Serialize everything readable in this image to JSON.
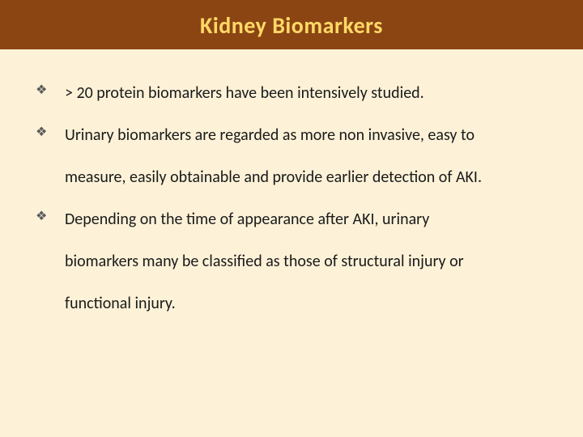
{
  "slide": {
    "title": "Kidney Biomarkers",
    "header_bg_color": "#8b4513",
    "header_text_color": "#ffd966",
    "header_fontsize": 28,
    "body_bg_color": "#fdf2d8",
    "body_text_color": "#1a1a1a",
    "body_fontsize": 20,
    "bullet_color": "#5a5a5a",
    "bullet_glyph": "❖",
    "line_height": 2.6,
    "bullets": [
      {
        "lines": [
          "> 20 protein biomarkers have been intensively studied."
        ]
      },
      {
        "lines": [
          "Urinary biomarkers are regarded as more non invasive, easy to",
          "measure, easily obtainable and provide earlier detection of AKI."
        ]
      },
      {
        "lines": [
          "Depending on the time of appearance after AKI, urinary",
          "biomarkers many be classified as those of structural injury or",
          "functional injury."
        ]
      }
    ]
  }
}
